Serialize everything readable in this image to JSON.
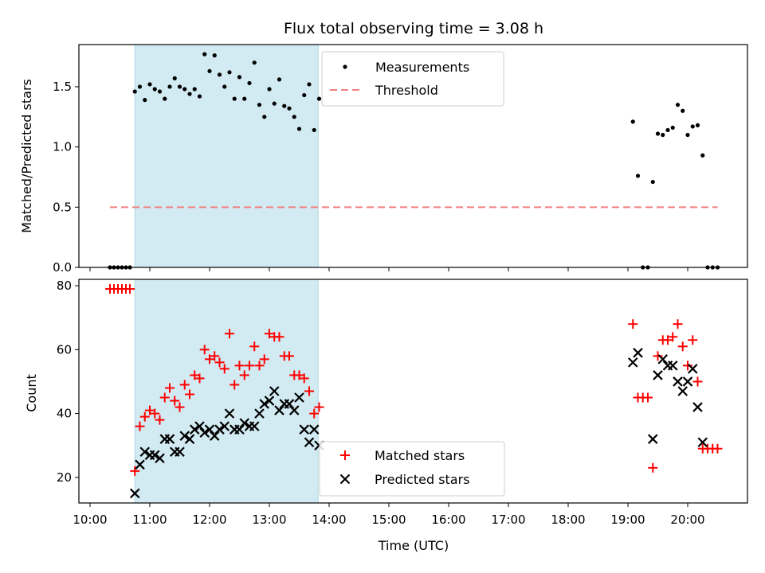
{
  "colors": {
    "measurement": "#000000",
    "threshold": "#f08080",
    "matched": "#ff0000",
    "predicted": "#000000",
    "span": "#add8e6"
  },
  "chart_data": [
    {
      "type": "scatter",
      "title": "Flux total observing time = 3.08 h",
      "xlabel": "",
      "ylabel": "Matched/Predicted stars",
      "xlim": [
        "10:00",
        "21:00"
      ],
      "ylim": [
        0,
        1.85
      ],
      "yticks": [
        "0.0",
        "0.5",
        "1.0",
        "1.5"
      ],
      "highlight_span": [
        "10:45",
        "13:49"
      ],
      "threshold": {
        "name": "Threshold",
        "value": 0.5,
        "x_range": [
          "10:20",
          "20:30"
        ],
        "style": "dashed"
      },
      "legend": {
        "position": "top-center",
        "entries": [
          "Measurements",
          "Threshold"
        ]
      },
      "series": [
        {
          "name": "Measurements",
          "x": [
            "10:20",
            "10:24",
            "10:28",
            "10:32",
            "10:36",
            "10:40",
            "10:45",
            "10:50",
            "10:55",
            "11:00",
            "11:05",
            "11:10",
            "11:15",
            "11:20",
            "11:25",
            "11:30",
            "11:35",
            "11:40",
            "11:45",
            "11:50",
            "11:55",
            "12:00",
            "12:05",
            "12:10",
            "12:15",
            "12:20",
            "12:25",
            "12:30",
            "12:35",
            "12:40",
            "12:45",
            "12:50",
            "12:55",
            "13:00",
            "13:05",
            "13:10",
            "13:15",
            "13:20",
            "13:25",
            "13:30",
            "13:35",
            "13:40",
            "13:45",
            "13:50",
            "19:05",
            "19:10",
            "19:15",
            "19:20",
            "19:25",
            "19:30",
            "19:35",
            "19:40",
            "19:45",
            "19:50",
            "19:55",
            "20:00",
            "20:05",
            "20:10",
            "20:15",
            "20:20",
            "20:25",
            "20:30"
          ],
          "y": [
            0,
            0,
            0,
            0,
            0,
            0,
            1.46,
            1.5,
            1.39,
            1.52,
            1.48,
            1.46,
            1.4,
            1.5,
            1.57,
            1.5,
            1.48,
            1.44,
            1.48,
            1.42,
            1.77,
            1.63,
            1.76,
            1.6,
            1.5,
            1.62,
            1.4,
            1.58,
            1.4,
            1.53,
            1.7,
            1.35,
            1.25,
            1.48,
            1.36,
            1.56,
            1.34,
            1.32,
            1.25,
            1.15,
            1.43,
            1.52,
            1.14,
            1.4,
            1.21,
            0.76,
            0,
            0,
            0.71,
            1.11,
            1.1,
            1.14,
            1.16,
            1.35,
            1.3,
            1.1,
            1.17,
            1.18,
            0.93,
            0,
            0,
            0
          ]
        }
      ]
    },
    {
      "type": "scatter",
      "xlabel": "Time (UTC)",
      "ylabel": "Count",
      "xlim": [
        "10:00",
        "21:00"
      ],
      "ylim": [
        12,
        82
      ],
      "xticks": [
        "10:00",
        "11:00",
        "12:00",
        "13:00",
        "14:00",
        "15:00",
        "16:00",
        "17:00",
        "18:00",
        "19:00",
        "20:00"
      ],
      "yticks": [
        "20",
        "40",
        "60",
        "80"
      ],
      "highlight_span": [
        "10:45",
        "13:49"
      ],
      "legend": {
        "position": "bottom-center",
        "entries": [
          "Matched stars",
          "Predicted stars"
        ]
      },
      "series": [
        {
          "name": "Matched stars",
          "marker": "plus",
          "x": [
            "10:20",
            "10:24",
            "10:28",
            "10:32",
            "10:36",
            "10:40",
            "10:45",
            "10:50",
            "10:55",
            "11:00",
            "11:05",
            "11:10",
            "11:15",
            "11:20",
            "11:25",
            "11:30",
            "11:35",
            "11:40",
            "11:45",
            "11:50",
            "11:55",
            "12:00",
            "12:05",
            "12:10",
            "12:15",
            "12:20",
            "12:25",
            "12:30",
            "12:35",
            "12:40",
            "12:45",
            "12:50",
            "12:55",
            "13:00",
            "13:05",
            "13:10",
            "13:15",
            "13:20",
            "13:25",
            "13:30",
            "13:35",
            "13:40",
            "13:45",
            "13:50",
            "19:05",
            "19:10",
            "19:15",
            "19:20",
            "19:25",
            "19:30",
            "19:35",
            "19:40",
            "19:45",
            "19:50",
            "19:55",
            "20:00",
            "20:05",
            "20:10",
            "20:15",
            "20:20",
            "20:25",
            "20:30"
          ],
          "y": [
            79,
            79,
            79,
            79,
            79,
            79,
            22,
            36,
            39,
            41,
            40,
            38,
            45,
            48,
            44,
            42,
            49,
            46,
            52,
            51,
            60,
            57,
            58,
            56,
            54,
            65,
            49,
            55,
            52,
            55,
            61,
            55,
            57,
            65,
            64,
            64,
            58,
            58,
            52,
            52,
            51,
            47,
            40,
            42,
            68,
            45,
            45,
            45,
            23,
            58,
            63,
            63,
            64,
            68,
            61,
            55,
            63,
            50,
            29,
            29,
            29,
            29
          ]
        },
        {
          "name": "Predicted stars",
          "marker": "x",
          "x": [
            "10:45",
            "10:50",
            "10:55",
            "11:00",
            "11:05",
            "11:10",
            "11:15",
            "11:20",
            "11:25",
            "11:30",
            "11:35",
            "11:40",
            "11:45",
            "11:50",
            "11:55",
            "12:00",
            "12:05",
            "12:10",
            "12:15",
            "12:20",
            "12:25",
            "12:30",
            "12:35",
            "12:40",
            "12:45",
            "12:50",
            "12:55",
            "13:00",
            "13:05",
            "13:10",
            "13:15",
            "13:20",
            "13:25",
            "13:30",
            "13:35",
            "13:40",
            "13:45",
            "13:50",
            "19:05",
            "19:10",
            "19:25",
            "19:30",
            "19:35",
            "19:40",
            "19:45",
            "19:50",
            "19:55",
            "20:00",
            "20:05",
            "20:10",
            "20:15"
          ],
          "y": [
            15,
            24,
            28,
            27,
            27,
            26,
            32,
            32,
            28,
            28,
            33,
            32,
            35,
            36,
            34,
            35,
            33,
            35,
            36,
            40,
            35,
            35,
            37,
            36,
            36,
            40,
            43,
            44,
            47,
            41,
            43,
            43,
            41,
            45,
            35,
            31,
            35,
            30,
            56,
            59,
            32,
            52,
            57,
            55,
            55,
            50,
            47,
            50,
            54,
            42,
            31
          ]
        }
      ]
    }
  ]
}
